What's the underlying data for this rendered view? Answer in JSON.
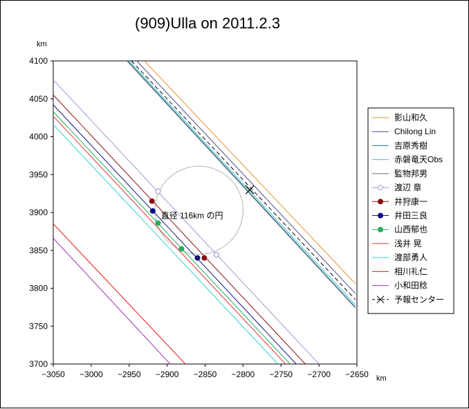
{
  "chart_data": {
    "type": "scatter",
    "title": "(909)Ulla on 2011.2.3",
    "xunit": "km",
    "yunit": "km",
    "xlim": [
      -3050,
      -2650
    ],
    "ylim": [
      3700,
      4100
    ],
    "x_ticks": [
      -3050,
      -3000,
      -2950,
      -2900,
      -2850,
      -2800,
      -2750,
      -2700,
      -2650
    ],
    "y_ticks": [
      3700,
      3750,
      3800,
      3850,
      3900,
      3950,
      4000,
      4050,
      4100
    ],
    "grid": false,
    "legend_position": "right",
    "circle": {
      "label": "直径 116km の円",
      "center": [
        -2858,
        3903
      ],
      "diameter": 116,
      "color": "#c0c0c0"
    },
    "series": [
      {
        "name": "影山和久",
        "color": "#e8902a",
        "marker": "none",
        "line": [
          [
            -2930,
            4100
          ],
          [
            -2652,
            3806
          ]
        ]
      },
      {
        "name": "Chilong Lin",
        "color": "#4a4a8a",
        "marker": "none",
        "line": [
          [
            -2940,
            4100
          ],
          [
            -2652,
            3793
          ]
        ]
      },
      {
        "name": "吉原秀樹",
        "color": "#1a7a8a",
        "marker": "none",
        "line": [
          [
            -2952,
            4100
          ],
          [
            -2652,
            3775
          ]
        ]
      },
      {
        "name": "赤磐竜天Obs",
        "color": "#3fc0d0",
        "marker": "none",
        "line": [
          [
            -2950,
            4100
          ],
          [
            -2652,
            3778
          ]
        ]
      },
      {
        "name": "監物邦男",
        "color": "#707080",
        "marker": "none",
        "line": [
          [
            -2953,
            4100
          ],
          [
            -2652,
            3774
          ]
        ]
      },
      {
        "name": "渡辺 章",
        "color": "#a09ad0",
        "marker": "open-circle",
        "line": [
          [
            -3050,
            4075
          ],
          [
            -2700,
            3700
          ]
        ],
        "points": [
          [
            -2912,
            3928
          ],
          [
            -2835,
            3844
          ]
        ]
      },
      {
        "name": "井狩康一",
        "color": "#8b1010",
        "marker": "filled-circle",
        "line": [
          [
            -3050,
            4055
          ],
          [
            -2718,
            3700
          ]
        ],
        "points": [
          [
            -2920,
            3915
          ],
          [
            -2851,
            3840
          ]
        ]
      },
      {
        "name": "井田三良",
        "color": "#101080",
        "marker": "filled-circle",
        "line": [
          [
            -3050,
            4042
          ],
          [
            -2730,
            3700
          ]
        ],
        "points": [
          [
            -2919,
            3902
          ],
          [
            -2860,
            3840
          ]
        ]
      },
      {
        "name": "山西郁也",
        "color": "#20b060",
        "marker": "filled-circle",
        "line": [
          [
            -3050,
            4033
          ],
          [
            -2738,
            3700
          ]
        ],
        "points": [
          [
            -2912,
            3886
          ],
          [
            -2881,
            3852
          ]
        ]
      },
      {
        "name": "浅井 晃",
        "color": "#e03030",
        "marker": "none",
        "line": [
          [
            -3050,
            4027
          ],
          [
            -2744,
            3700
          ]
        ]
      },
      {
        "name": "渡部勇人",
        "color": "#30d0d0",
        "marker": "none",
        "line": [
          [
            -3050,
            4016
          ],
          [
            -2754,
            3700
          ]
        ]
      },
      {
        "name": "相川礼仁",
        "color": "#e81010",
        "marker": "none",
        "line": [
          [
            -3050,
            3885
          ],
          [
            -2876,
            3700
          ]
        ]
      },
      {
        "name": "小和田稔",
        "color": "#a030b0",
        "marker": "none",
        "line": [
          [
            -3050,
            3866
          ],
          [
            -2896,
            3700
          ]
        ]
      },
      {
        "name": "予報センター",
        "color": "#000000",
        "marker": "x",
        "dashed": true,
        "line": [
          [
            -2947,
            4100
          ],
          [
            -2652,
            3785
          ]
        ],
        "points": [
          [
            -2791,
            3930
          ]
        ]
      }
    ]
  }
}
